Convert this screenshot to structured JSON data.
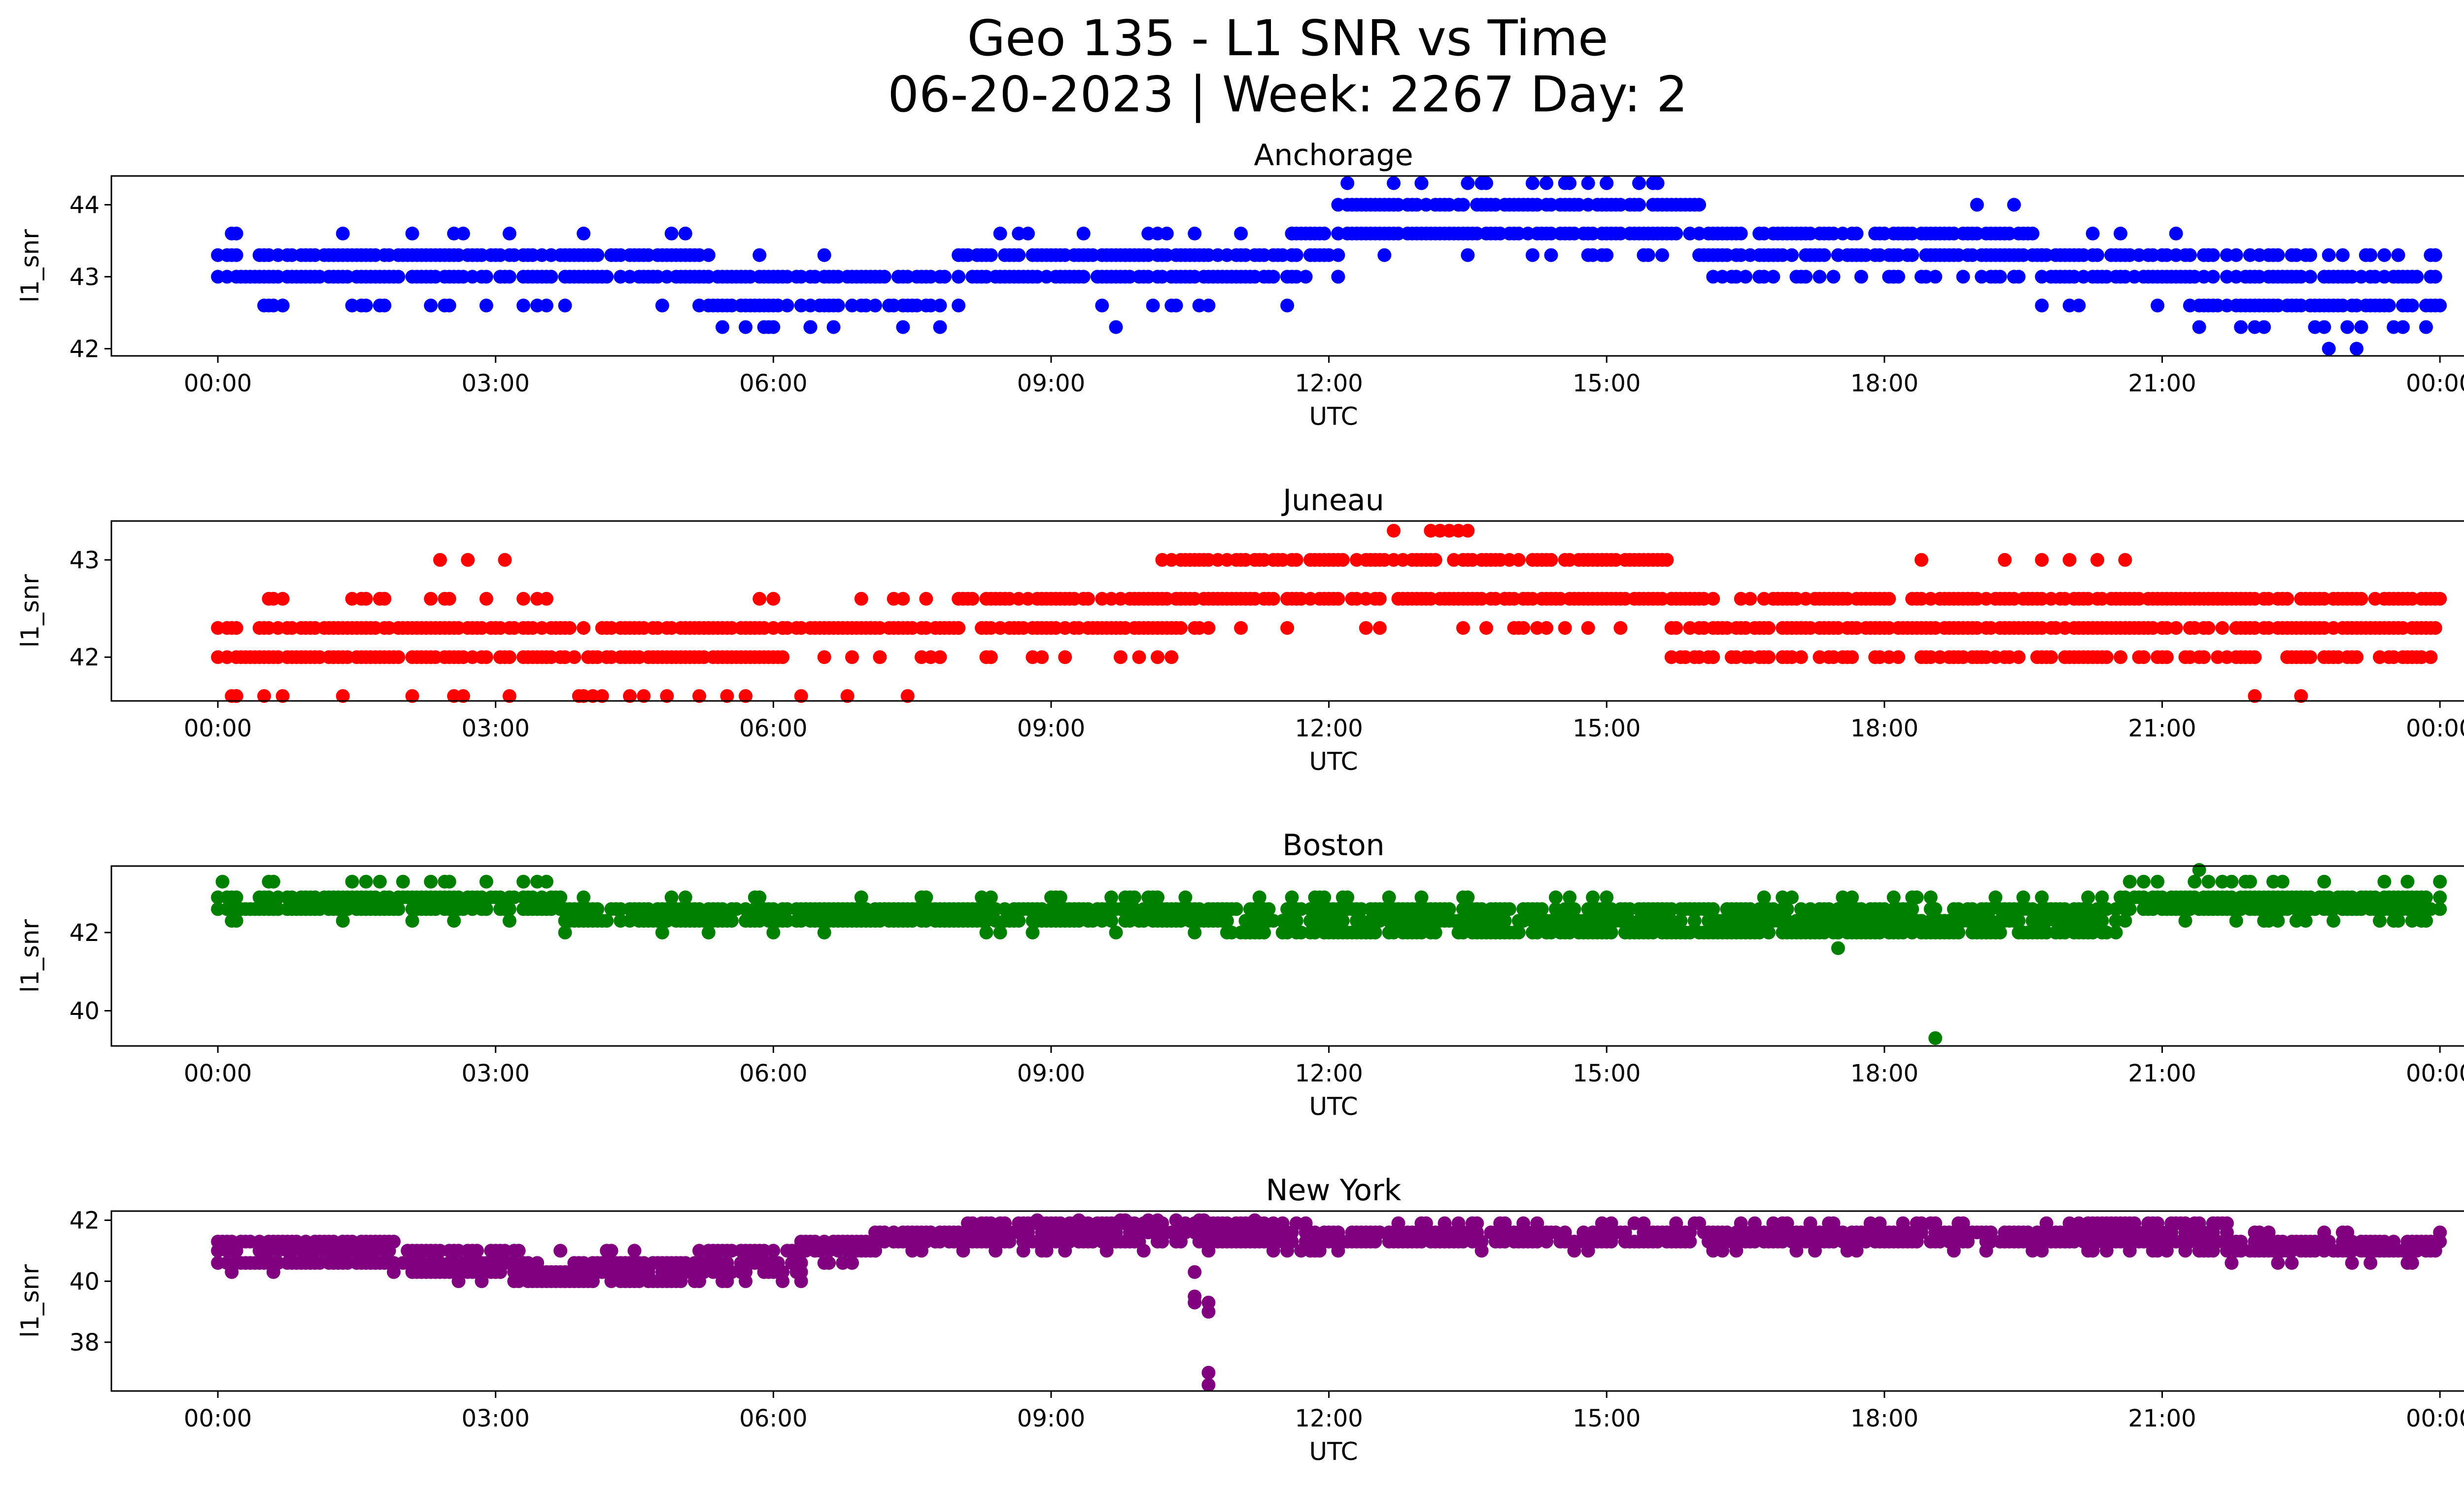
{
  "figure": {
    "title_line1": "Geo 135 - L1 SNR vs Time",
    "title_line2": "06-20-2023 | Week: 2267 Day: 2"
  },
  "chart_data": [
    {
      "type": "scatter",
      "title": "Anchorage",
      "xlabel": "UTC",
      "ylabel": "l1_snr",
      "color": "#0000ff",
      "x_ticks": [
        "00:00",
        "03:00",
        "06:00",
        "09:00",
        "12:00",
        "15:00",
        "18:00",
        "21:00",
        "00:00"
      ],
      "y_ticks": [
        42,
        43,
        44
      ],
      "xlim_hours": [
        -1.15,
        25.25
      ],
      "ylim": [
        41.9,
        44.4
      ],
      "series": [
        {
          "segments": [
            {
              "t0": 0.0,
              "t1": 3.6,
              "values": [
                43.0,
                43.3
              ],
              "extras": [
                42.6,
                43.6
              ],
              "extra_every": 0.18
            },
            {
              "t0": 3.6,
              "t1": 5.3,
              "values": [
                43.0,
                43.3
              ],
              "extras": [
                43.6,
                42.6
              ],
              "extra_every": 0.25
            },
            {
              "t0": 5.3,
              "t1": 8.0,
              "values": [
                42.6,
                43.0
              ],
              "extras": [
                43.3,
                42.3
              ],
              "extra_every": 0.3
            },
            {
              "t0": 8.0,
              "t1": 11.6,
              "values": [
                43.0,
                43.3
              ],
              "extras": [
                42.6,
                43.6
              ],
              "extra_every": 0.2
            },
            {
              "t0": 11.6,
              "t1": 12.1,
              "values": [
                43.3,
                43.6
              ],
              "extras": [
                43.0
              ],
              "extra_every": 0.2
            },
            {
              "t0": 12.1,
              "t1": 16.0,
              "values": [
                43.6,
                44.0
              ],
              "extras": [
                44.3,
                43.3
              ],
              "extra_every": 0.22
            },
            {
              "t0": 16.0,
              "t1": 19.7,
              "values": [
                43.3,
                43.6
              ],
              "extras": [
                43.0
              ],
              "extra_every": 0.15
            },
            {
              "t0": 19.7,
              "t1": 21.3,
              "values": [
                43.0,
                43.3
              ],
              "extras": [
                43.6,
                42.6
              ],
              "extra_every": 0.3
            },
            {
              "t0": 21.3,
              "t1": 24.0,
              "values": [
                42.6,
                43.0
              ],
              "extras": [
                42.3,
                43.3
              ],
              "extra_every": 0.1
            }
          ],
          "points": [
            [
              12.7,
              44.3
            ],
            [
              13.0,
              44.3
            ],
            [
              13.5,
              44.3
            ],
            [
              13.7,
              44.3
            ],
            [
              14.2,
              44.3
            ],
            [
              14.6,
              44.3
            ],
            [
              14.8,
              44.3
            ],
            [
              15.0,
              44.3
            ],
            [
              19.0,
              44.0
            ],
            [
              19.4,
              44.0
            ],
            [
              22.8,
              42.0
            ],
            [
              23.1,
              42.0
            ],
            [
              0.5,
              42.6
            ],
            [
              0.7,
              42.6
            ],
            [
              5.2,
              42.6
            ],
            [
              5.9,
              42.3
            ],
            [
              6.4,
              42.3
            ],
            [
              7.4,
              42.3
            ],
            [
              9.7,
              42.3
            ],
            [
              12.1,
              43.0
            ],
            [
              9.9,
              43.3
            ],
            [
              18.1,
              43.0
            ],
            [
              19.7,
              42.6
            ],
            [
              20.1,
              42.6
            ],
            [
              21.5,
              43.3
            ],
            [
              23.9,
              43.3
            ],
            [
              15.0,
              43.3
            ],
            [
              14.2,
              43.3
            ],
            [
              14.4,
              43.3
            ],
            [
              16.4,
              43.0
            ],
            [
              12.6,
              43.3
            ]
          ]
        }
      ]
    },
    {
      "type": "scatter",
      "title": "Juneau",
      "xlabel": "UTC",
      "ylabel": "l1_snr",
      "color": "#ff0000",
      "x_ticks": [
        "00:00",
        "03:00",
        "06:00",
        "09:00",
        "12:00",
        "15:00",
        "18:00",
        "21:00",
        "00:00"
      ],
      "y_ticks": [
        42,
        43
      ],
      "xlim_hours": [
        -1.15,
        25.25
      ],
      "ylim": [
        41.55,
        43.4
      ],
      "series": [
        {
          "segments": [
            {
              "t0": 0.0,
              "t1": 6.1,
              "values": [
                42.0,
                42.3
              ],
              "extras": [
                42.6,
                41.6
              ],
              "extra_every": 0.2
            },
            {
              "t0": 6.1,
              "t1": 8.0,
              "values": [
                42.3
              ],
              "extras": [
                42.6,
                42.0,
                41.6
              ],
              "extra_every": 0.15
            },
            {
              "t0": 8.0,
              "t1": 10.4,
              "values": [
                42.3,
                42.6
              ],
              "extras": [
                42.0
              ],
              "extra_every": 0.3
            },
            {
              "t0": 10.4,
              "t1": 13.9,
              "values": [
                42.6,
                43.0
              ],
              "extras": [
                42.3
              ],
              "extra_every": 0.25
            },
            {
              "t0": 13.9,
              "t1": 15.7,
              "values": [
                42.6,
                43.0
              ],
              "extras": [
                42.3
              ],
              "extra_every": 0.25
            },
            {
              "t0": 15.7,
              "t1": 24.0,
              "values": [
                42.3,
                42.6
              ],
              "extras": [
                42.0
              ],
              "extra_every": 0.1
            }
          ],
          "points": [
            [
              2.4,
              43.0
            ],
            [
              2.7,
              43.0
            ],
            [
              3.1,
              43.0
            ],
            [
              12.7,
              43.3
            ],
            [
              13.1,
              43.3
            ],
            [
              13.2,
              43.3
            ],
            [
              13.3,
              43.3
            ],
            [
              13.4,
              43.3
            ],
            [
              13.5,
              43.3
            ],
            [
              18.4,
              43.0
            ],
            [
              19.3,
              43.0
            ],
            [
              19.7,
              43.0
            ],
            [
              20.0,
              43.0
            ],
            [
              20.3,
              43.0
            ],
            [
              20.6,
              43.0
            ],
            [
              10.2,
              43.0
            ],
            [
              10.3,
              43.0
            ],
            [
              22.0,
              41.6
            ],
            [
              22.5,
              41.6
            ],
            [
              3.9,
              41.6
            ],
            [
              5.2,
              41.6
            ],
            [
              5.5,
              41.6
            ],
            [
              0.2,
              41.6
            ],
            [
              0.5,
              41.6
            ],
            [
              0.7,
              41.6
            ],
            [
              14.0,
              42.3
            ],
            [
              14.8,
              42.3
            ],
            [
              12.4,
              42.3
            ]
          ]
        }
      ]
    },
    {
      "type": "scatter",
      "title": "Boston",
      "xlabel": "UTC",
      "ylabel": "l1_snr",
      "color": "#008000",
      "x_ticks": [
        "00:00",
        "03:00",
        "06:00",
        "09:00",
        "12:00",
        "15:00",
        "18:00",
        "21:00",
        "00:00"
      ],
      "y_ticks": [
        40,
        42
      ],
      "xlim_hours": [
        -1.15,
        25.25
      ],
      "ylim": [
        39.1,
        43.7
      ],
      "series": [
        {
          "segments": [
            {
              "t0": 0.0,
              "t1": 3.7,
              "values": [
                42.6,
                42.9
              ],
              "extras": [
                43.3,
                42.3
              ],
              "extra_every": 0.25
            },
            {
              "t0": 3.7,
              "t1": 10.9,
              "values": [
                42.3,
                42.6
              ],
              "extras": [
                42.9,
                42.0
              ],
              "extra_every": 0.25
            },
            {
              "t0": 10.9,
              "t1": 17.5,
              "values": [
                42.0,
                42.3,
                42.6
              ],
              "extras": [
                42.9
              ],
              "extra_every": 0.35
            },
            {
              "t0": 17.5,
              "t1": 20.5,
              "values": [
                42.0,
                42.3,
                42.6
              ],
              "extras": [
                42.9
              ],
              "extra_every": 0.2
            },
            {
              "t0": 20.5,
              "t1": 24.0,
              "values": [
                42.6,
                42.9
              ],
              "extras": [
                43.3,
                42.3
              ],
              "extra_every": 0.12
            }
          ],
          "points": [
            [
              18.55,
              39.3
            ],
            [
              17.5,
              41.6
            ],
            [
              21.4,
              43.6
            ],
            [
              0.05,
              43.3
            ],
            [
              1.6,
              43.3
            ],
            [
              2.0,
              43.3
            ]
          ]
        }
      ]
    },
    {
      "type": "scatter",
      "title": "New York",
      "xlabel": "UTC",
      "ylabel": "l1_snr",
      "color": "#800080",
      "x_ticks": [
        "00:00",
        "03:00",
        "06:00",
        "09:00",
        "12:00",
        "15:00",
        "18:00",
        "21:00",
        "00:00"
      ],
      "y_ticks": [
        38,
        40,
        42
      ],
      "xlim_hours": [
        -1.15,
        25.25
      ],
      "ylim": [
        36.4,
        42.3
      ],
      "series": [
        {
          "segments": [
            {
              "t0": 0.0,
              "t1": 1.9,
              "values": [
                40.6,
                41.0,
                41.3
              ],
              "extras": [
                40.3
              ],
              "extra_every": 0.5
            },
            {
              "t0": 1.9,
              "t1": 3.2,
              "values": [
                40.3,
                40.6,
                41.0
              ],
              "extras": [
                40.0
              ],
              "extra_every": 0.5
            },
            {
              "t0": 3.2,
              "t1": 5.2,
              "values": [
                40.0,
                40.3,
                40.6
              ],
              "extras": [
                41.0
              ],
              "extra_every": 0.3
            },
            {
              "t0": 5.2,
              "t1": 6.3,
              "values": [
                40.3,
                40.6,
                41.0
              ],
              "extras": [
                40.0
              ],
              "extra_every": 0.3
            },
            {
              "t0": 6.3,
              "t1": 7.1,
              "values": [
                41.0,
                41.3
              ],
              "extras": [
                40.6
              ],
              "extra_every": 0.3
            },
            {
              "t0": 7.1,
              "t1": 8.1,
              "values": [
                41.3,
                41.6
              ],
              "extras": [
                41.0
              ],
              "extra_every": 0.3
            },
            {
              "t0": 8.1,
              "t1": 11.5,
              "values": [
                41.3,
                41.6,
                41.9
              ],
              "extras": [
                41.0,
                42.0
              ],
              "extra_every": 0.25
            },
            {
              "t0": 11.5,
              "t1": 20.2,
              "values": [
                41.3,
                41.6
              ],
              "extras": [
                41.0,
                41.9
              ],
              "extra_every": 0.15
            },
            {
              "t0": 20.2,
              "t1": 21.7,
              "values": [
                41.3,
                41.6,
                41.9
              ],
              "extras": [
                41.0
              ],
              "extra_every": 0.2
            },
            {
              "t0": 21.7,
              "t1": 24.0,
              "values": [
                41.0,
                41.3
              ],
              "extras": [
                41.6,
                40.6
              ],
              "extra_every": 0.2
            }
          ],
          "points": [
            [
              10.55,
              40.3
            ],
            [
              10.55,
              39.5
            ],
            [
              10.55,
              39.3
            ],
            [
              10.7,
              39.3
            ],
            [
              10.7,
              39.0
            ],
            [
              10.7,
              37.0
            ],
            [
              10.7,
              36.6
            ],
            [
              0.15,
              40.3
            ]
          ]
        }
      ]
    }
  ]
}
